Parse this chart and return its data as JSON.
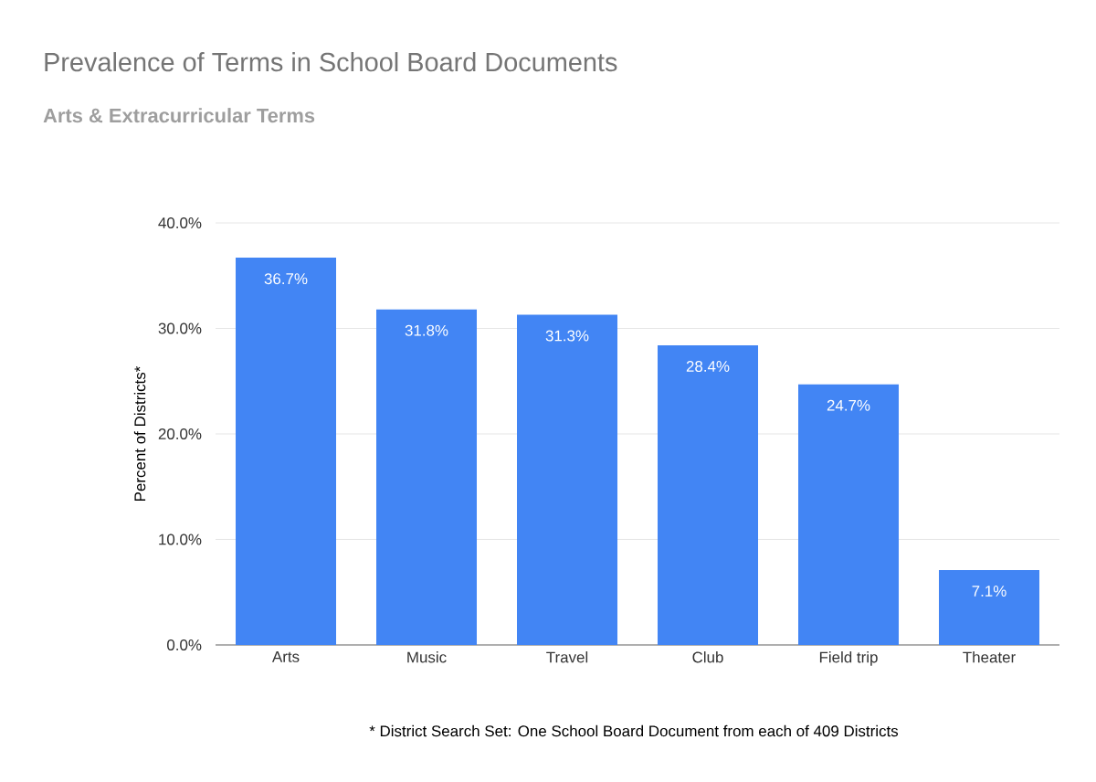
{
  "chart_data": {
    "type": "bar",
    "title": "Prevalence of Terms in School Board Documents",
    "subtitle": "Arts & Extracurricular Terms",
    "ylabel": "Percent of Districts*",
    "categories": [
      "Arts",
      "Music",
      "Travel",
      "Club",
      "Field trip",
      "Theater"
    ],
    "values": [
      36.7,
      31.8,
      31.3,
      28.4,
      24.7,
      7.1
    ],
    "value_labels": [
      "36.7%",
      "31.8%",
      "31.3%",
      "28.4%",
      "24.7%",
      "7.1%"
    ],
    "color": "#4285f4",
    "ylim": [
      0,
      40
    ],
    "yticks": [
      {
        "value": 0,
        "label": "0.0%"
      },
      {
        "value": 10,
        "label": "10.0%"
      },
      {
        "value": 20,
        "label": "20.0%"
      },
      {
        "value": 30,
        "label": "30.0%"
      },
      {
        "value": 40,
        "label": "40.0%"
      }
    ],
    "grid": "y",
    "annotations": [
      "* District Search Set: One School Board Document from each of 409 Districts"
    ]
  }
}
